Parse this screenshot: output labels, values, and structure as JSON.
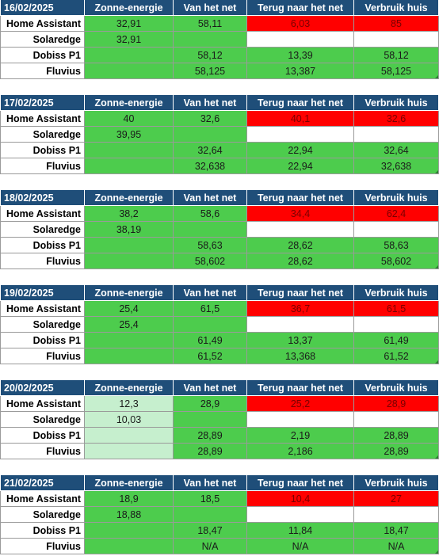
{
  "columns": [
    "Zonne-energie",
    "Van het net",
    "Terug naar het net",
    "Verbruik huis"
  ],
  "rows": [
    "Home Assistant",
    "Solaredge",
    "Dobiss P1",
    "Fluvius"
  ],
  "blocks": [
    {
      "date": "16/02/2025",
      "home_assistant": [
        "32,91",
        "58,11",
        "6,03",
        "85"
      ],
      "solaredge": [
        "32,91",
        "",
        "",
        ""
      ],
      "dobiss": [
        "",
        "58,12",
        "13,39",
        "58,12"
      ],
      "fluvius": [
        "",
        "58,125",
        "13,387",
        "58,125"
      ]
    },
    {
      "date": "17/02/2025",
      "home_assistant": [
        "40",
        "32,6",
        "40,1",
        "32,6"
      ],
      "solaredge": [
        "39,95",
        "",
        "",
        ""
      ],
      "dobiss": [
        "",
        "32,64",
        "22,94",
        "32,64"
      ],
      "fluvius": [
        "",
        "32,638",
        "22,94",
        "32,638"
      ]
    },
    {
      "date": "18/02/2025",
      "home_assistant": [
        "38,2",
        "58,6",
        "34,4",
        "62,4"
      ],
      "solaredge": [
        "38,19",
        "",
        "",
        ""
      ],
      "dobiss": [
        "",
        "58,63",
        "28,62",
        "58,63"
      ],
      "fluvius": [
        "",
        "58,602",
        "28,62",
        "58,602"
      ]
    },
    {
      "date": "19/02/2025",
      "home_assistant": [
        "25,4",
        "61,5",
        "36,7",
        "61,5"
      ],
      "solaredge": [
        "25,4",
        "",
        "",
        ""
      ],
      "dobiss": [
        "",
        "61,49",
        "13,37",
        "61,49"
      ],
      "fluvius": [
        "",
        "61,52",
        "13,368",
        "61,52"
      ]
    },
    {
      "date": "20/02/2025",
      "home_assistant": [
        "12,3",
        "28,9",
        "25,2",
        "28,9"
      ],
      "solaredge": [
        "10,03",
        "",
        "",
        ""
      ],
      "dobiss": [
        "",
        "28,89",
        "2,19",
        "28,89"
      ],
      "fluvius": [
        "",
        "28,89",
        "2,186",
        "28,89"
      ]
    },
    {
      "date": "21/02/2025",
      "home_assistant": [
        "18,9",
        "18,5",
        "10,4",
        "27"
      ],
      "solaredge": [
        "18,88",
        "",
        "",
        ""
      ],
      "dobiss": [
        "",
        "18,47",
        "11,84",
        "18,47"
      ],
      "fluvius": [
        "",
        "N/A",
        "N/A",
        "N/A"
      ]
    }
  ],
  "colors": {
    "header": "#1f4e79",
    "green": "#4dcc4d",
    "light_green": "#c6efce",
    "red": "#ff0000"
  }
}
